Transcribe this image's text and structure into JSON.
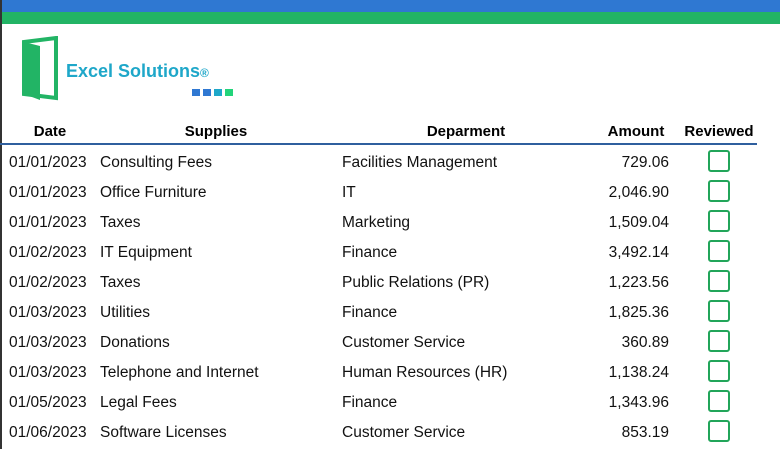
{
  "logo": {
    "name": "Excel Solutions",
    "mark": "®"
  },
  "table": {
    "headers": [
      "Date",
      "Supplies",
      "Deparment",
      "Amount",
      "Reviewed"
    ],
    "rows": [
      [
        "01/01/2023",
        "Consulting Fees",
        "Facilities Management",
        "729.06"
      ],
      [
        "01/01/2023",
        "Office Furniture",
        "IT",
        "2,046.90"
      ],
      [
        "01/01/2023",
        "Taxes",
        "Marketing",
        "1,509.04"
      ],
      [
        "01/02/2023",
        "IT Equipment",
        "Finance",
        "3,492.14"
      ],
      [
        "01/02/2023",
        "Taxes",
        "Public Relations (PR)",
        "1,223.56"
      ],
      [
        "01/03/2023",
        "Utilities",
        "Finance",
        "1,825.36"
      ],
      [
        "01/03/2023",
        "Donations",
        "Customer Service",
        "360.89"
      ],
      [
        "01/03/2023",
        "Telephone and Internet",
        "Human Resources (HR)",
        "1,138.24"
      ],
      [
        "01/05/2023",
        "Legal Fees",
        "Finance",
        "1,343.96"
      ],
      [
        "01/06/2023",
        "Software Licenses",
        "Customer Service",
        "853.19"
      ]
    ]
  }
}
